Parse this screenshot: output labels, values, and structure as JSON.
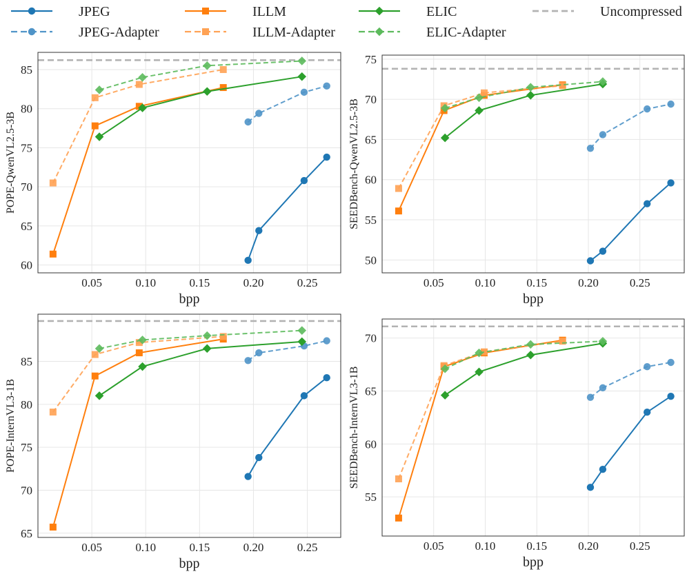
{
  "legend": {
    "entries": [
      {
        "label": "JPEG",
        "color": "#1f77b4",
        "marker": "circle",
        "dash": false
      },
      {
        "label": "ILLM",
        "color": "#ff7f0e",
        "marker": "square",
        "dash": false
      },
      {
        "label": "ELIC",
        "color": "#2ca02c",
        "marker": "diamond",
        "dash": false
      },
      {
        "label": "Uncompressed",
        "color": "#b3b3b3",
        "marker": "none",
        "dash": true
      },
      {
        "label": "JPEG-Adapter",
        "color": "#4f94c8",
        "marker": "circle",
        "dash": true
      },
      {
        "label": "ILLM-Adapter",
        "color": "#ffa254",
        "marker": "square",
        "dash": true
      },
      {
        "label": "ELIC-Adapter",
        "color": "#5cba5c",
        "marker": "diamond",
        "dash": true
      }
    ]
  },
  "chart_data": [
    {
      "type": "line",
      "xlabel": "bpp",
      "ylabel": "POPE-QwenVL2.5-3B",
      "xticks": [
        "0.05",
        "0.10",
        "0.15",
        "0.20",
        "0.25"
      ],
      "xtick_values": [
        0.05,
        0.1,
        0.15,
        0.2,
        0.25
      ],
      "yticks": [
        "60",
        "65",
        "70",
        "75",
        "80",
        "85"
      ],
      "ytick_values": [
        60,
        65,
        70,
        75,
        80,
        85
      ],
      "xlim": [
        0.0,
        0.281
      ],
      "ylim": [
        59.0,
        87.2
      ],
      "uncompressed": 86.2,
      "series": [
        {
          "name": "JPEG",
          "x": [
            0.195,
            0.205,
            0.247,
            0.268
          ],
          "y": [
            60.6,
            64.4,
            70.8,
            73.8
          ]
        },
        {
          "name": "JPEG-Adapter",
          "x": [
            0.195,
            0.205,
            0.247,
            0.268
          ],
          "y": [
            78.3,
            79.4,
            82.1,
            82.9
          ]
        },
        {
          "name": "ILLM",
          "x": [
            0.014,
            0.053,
            0.094,
            0.172
          ],
          "y": [
            61.4,
            77.8,
            80.3,
            82.7
          ]
        },
        {
          "name": "ILLM-Adapter",
          "x": [
            0.014,
            0.053,
            0.094,
            0.172
          ],
          "y": [
            70.5,
            81.4,
            83.1,
            85.0
          ]
        },
        {
          "name": "ELIC",
          "x": [
            0.057,
            0.097,
            0.157,
            0.245
          ],
          "y": [
            76.4,
            80.1,
            82.2,
            84.1
          ]
        },
        {
          "name": "ELIC-Adapter",
          "x": [
            0.057,
            0.097,
            0.157,
            0.245
          ],
          "y": [
            82.4,
            84.0,
            85.5,
            86.1
          ]
        }
      ]
    },
    {
      "type": "line",
      "xlabel": "bpp",
      "ylabel": "SEEDBench-QwenVL2.5-3B",
      "xticks": [
        "0.05",
        "0.10",
        "0.15",
        "0.20",
        "0.25"
      ],
      "xtick_values": [
        0.05,
        0.1,
        0.15,
        0.2,
        0.25
      ],
      "yticks": [
        "50",
        "55",
        "60",
        "65",
        "70",
        "75"
      ],
      "ytick_values": [
        50,
        55,
        60,
        65,
        70,
        75
      ],
      "xlim": [
        0.0,
        0.293
      ],
      "ylim": [
        48.4,
        75.5
      ],
      "uncompressed": 73.8,
      "series": [
        {
          "name": "JPEG",
          "x": [
            0.202,
            0.214,
            0.257,
            0.28
          ],
          "y": [
            49.9,
            51.1,
            57.0,
            59.6
          ]
        },
        {
          "name": "JPEG-Adapter",
          "x": [
            0.202,
            0.214,
            0.257,
            0.28
          ],
          "y": [
            63.9,
            65.6,
            68.8,
            69.4
          ]
        },
        {
          "name": "ILLM",
          "x": [
            0.016,
            0.06,
            0.099,
            0.175
          ],
          "y": [
            56.1,
            68.6,
            70.5,
            71.8
          ]
        },
        {
          "name": "ILLM-Adapter",
          "x": [
            0.016,
            0.06,
            0.099,
            0.175
          ],
          "y": [
            58.9,
            69.2,
            70.8,
            71.7
          ]
        },
        {
          "name": "ELIC",
          "x": [
            0.061,
            0.094,
            0.144,
            0.214
          ],
          "y": [
            65.2,
            68.6,
            70.5,
            71.9
          ]
        },
        {
          "name": "ELIC-Adapter",
          "x": [
            0.061,
            0.094,
            0.144,
            0.214
          ],
          "y": [
            68.9,
            70.2,
            71.5,
            72.2
          ]
        }
      ]
    },
    {
      "type": "line",
      "xlabel": "bpp",
      "ylabel": "POPE-InternVL3-1B",
      "xticks": [
        "0.05",
        "0.10",
        "0.15",
        "0.20",
        "0.25"
      ],
      "xtick_values": [
        0.05,
        0.1,
        0.15,
        0.2,
        0.25
      ],
      "yticks": [
        "65",
        "70",
        "75",
        "80",
        "85"
      ],
      "ytick_values": [
        65,
        70,
        75,
        80,
        85
      ],
      "xlim": [
        0.0,
        0.281
      ],
      "ylim": [
        64.5,
        90.5
      ],
      "uncompressed": 89.7,
      "series": [
        {
          "name": "JPEG",
          "x": [
            0.195,
            0.205,
            0.247,
            0.268
          ],
          "y": [
            71.6,
            73.8,
            81.0,
            83.1
          ]
        },
        {
          "name": "JPEG-Adapter",
          "x": [
            0.195,
            0.205,
            0.247,
            0.268
          ],
          "y": [
            85.1,
            86.0,
            86.8,
            87.4
          ]
        },
        {
          "name": "ILLM",
          "x": [
            0.014,
            0.053,
            0.094,
            0.172
          ],
          "y": [
            65.7,
            83.3,
            86.0,
            87.6
          ]
        },
        {
          "name": "ILLM-Adapter",
          "x": [
            0.014,
            0.053,
            0.094,
            0.172
          ],
          "y": [
            79.1,
            85.8,
            87.2,
            87.9
          ]
        },
        {
          "name": "ELIC",
          "x": [
            0.057,
            0.097,
            0.157,
            0.245
          ],
          "y": [
            81.0,
            84.4,
            86.5,
            87.3
          ]
        },
        {
          "name": "ELIC-Adapter",
          "x": [
            0.057,
            0.097,
            0.157,
            0.245
          ],
          "y": [
            86.5,
            87.5,
            88.0,
            88.6
          ]
        }
      ]
    },
    {
      "type": "line",
      "xlabel": "bpp",
      "ylabel": "SEEDBench-InternVL3-1B",
      "xticks": [
        "0.05",
        "0.10",
        "0.15",
        "0.20",
        "0.25"
      ],
      "xtick_values": [
        0.05,
        0.1,
        0.15,
        0.2,
        0.25
      ],
      "yticks": [
        "55",
        "60",
        "65",
        "70"
      ],
      "ytick_values": [
        55,
        60,
        65,
        70
      ],
      "xlim": [
        0.0,
        0.293
      ],
      "ylim": [
        51.3,
        71.8
      ],
      "uncompressed": 71.1,
      "series": [
        {
          "name": "JPEG",
          "x": [
            0.202,
            0.214,
            0.257,
            0.28
          ],
          "y": [
            55.9,
            57.6,
            63.0,
            64.5
          ]
        },
        {
          "name": "JPEG-Adapter",
          "x": [
            0.202,
            0.214,
            0.257,
            0.28
          ],
          "y": [
            64.4,
            65.3,
            67.3,
            67.7
          ]
        },
        {
          "name": "ILLM",
          "x": [
            0.016,
            0.06,
            0.099,
            0.175
          ],
          "y": [
            53.0,
            67.3,
            68.6,
            69.8
          ]
        },
        {
          "name": "ILLM-Adapter",
          "x": [
            0.016,
            0.06,
            0.099,
            0.175
          ],
          "y": [
            56.7,
            67.4,
            68.7,
            69.7
          ]
        },
        {
          "name": "ELIC",
          "x": [
            0.061,
            0.094,
            0.144,
            0.214
          ],
          "y": [
            64.6,
            66.8,
            68.4,
            69.5
          ]
        },
        {
          "name": "ELIC-Adapter",
          "x": [
            0.061,
            0.094,
            0.144,
            0.214
          ],
          "y": [
            67.1,
            68.6,
            69.4,
            69.7
          ]
        }
      ]
    }
  ]
}
